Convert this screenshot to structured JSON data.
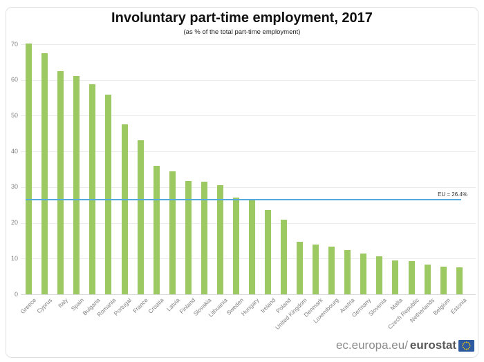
{
  "chart_data": {
    "type": "bar",
    "title": "Involuntary part-time employment, 2017",
    "subtitle": "(as % of the total part-time employment)",
    "categories": [
      "Greece",
      "Cyprus",
      "Italy",
      "Spain",
      "Bulgaria",
      "Romania",
      "Portugal",
      "France",
      "Croatia",
      "Latvia",
      "Finland",
      "Slovakia",
      "Lithuania",
      "Sweden",
      "Hungary",
      "Ireland",
      "Poland",
      "United Kingdom",
      "Denmark",
      "Luxembourg",
      "Austria",
      "Germany",
      "Slovenia",
      "Malta",
      "Czech Republic",
      "Netherlands",
      "Belgium",
      "Estonia"
    ],
    "values": [
      70.2,
      67.4,
      62.5,
      61.1,
      58.7,
      55.8,
      47.5,
      43.1,
      36.0,
      34.4,
      31.7,
      31.6,
      30.6,
      27.0,
      26.7,
      23.5,
      20.8,
      14.6,
      13.9,
      13.3,
      12.4,
      11.5,
      10.6,
      9.5,
      9.2,
      8.4,
      7.8,
      7.5
    ],
    "ylim": [
      0,
      70
    ],
    "yticks": [
      0,
      10,
      20,
      30,
      40,
      50,
      60,
      70
    ],
    "grid": true,
    "legend": "none",
    "bar_color": "#9dc963",
    "gridline_color": "#ebebeb",
    "axis_text_color": "#808080",
    "reference_line": {
      "label": "EU = 26.4%",
      "value": 26.4,
      "color": "#55aadd"
    }
  },
  "footer": {
    "url_prefix": "ec.europa.eu/",
    "url_bold": "eurostat",
    "flag_color": "#2d5aa0",
    "star_color": "#ffcc00"
  }
}
